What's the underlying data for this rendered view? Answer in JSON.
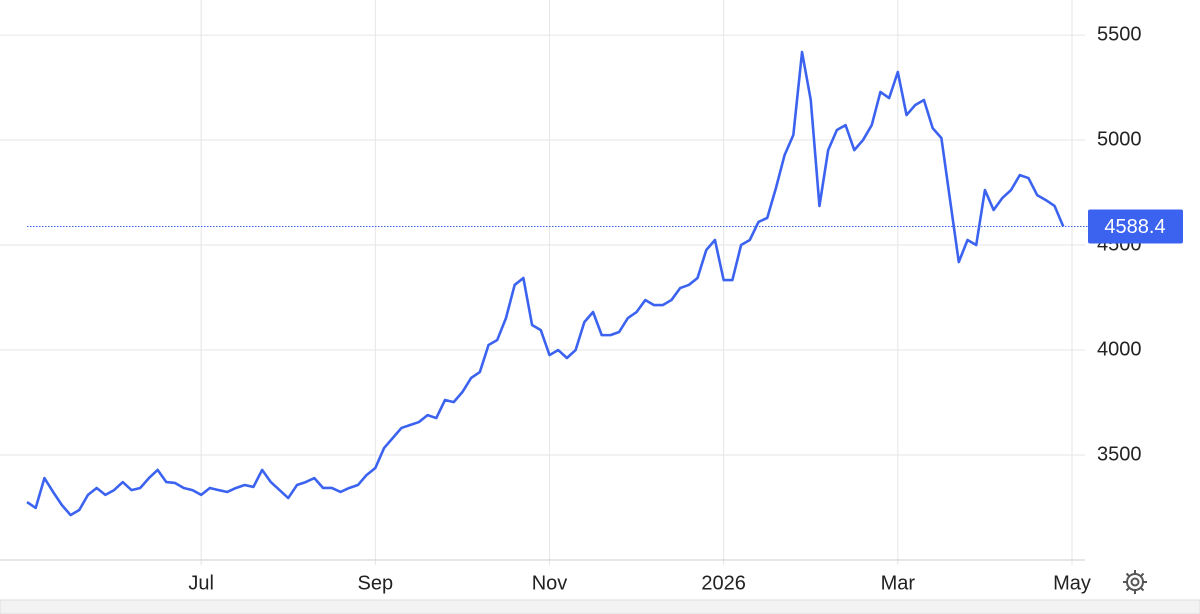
{
  "chart_data": {
    "type": "line",
    "categories": [
      null,
      null,
      null,
      null,
      null,
      null,
      null,
      null,
      null,
      null,
      null,
      null,
      null,
      null,
      null,
      null,
      null,
      null,
      null,
      null,
      "Jul",
      null,
      null,
      null,
      null,
      null,
      null,
      null,
      null,
      null,
      null,
      null,
      null,
      null,
      null,
      null,
      null,
      null,
      null,
      null,
      "Sep",
      null,
      null,
      null,
      null,
      null,
      null,
      null,
      null,
      null,
      null,
      null,
      null,
      null,
      null,
      null,
      null,
      null,
      null,
      null,
      "Nov",
      null,
      null,
      null,
      null,
      null,
      null,
      null,
      null,
      null,
      null,
      null,
      null,
      null,
      null,
      null,
      null,
      null,
      null,
      null,
      "2026",
      null,
      null,
      null,
      null,
      null,
      null,
      null,
      null,
      null,
      null,
      null,
      null,
      null,
      null,
      null,
      null,
      null,
      null,
      null,
      "Mar",
      null,
      null,
      null,
      null,
      null,
      null,
      null,
      null,
      null,
      null,
      null,
      null,
      null,
      null,
      null,
      null,
      null,
      null,
      null,
      "May"
    ],
    "series": [
      {
        "color": "#3b63f0",
        "values": [
          3276,
          3248,
          3390,
          3324,
          3262,
          3214,
          3238,
          3310,
          3343,
          3310,
          3333,
          3371,
          3333,
          3343,
          3390,
          3429,
          3371,
          3367,
          3343,
          3333,
          3310,
          3343,
          3333,
          3324,
          3343,
          3357,
          3348,
          3429,
          3371,
          3333,
          3295,
          3357,
          3371,
          3390,
          3343,
          3343,
          3324,
          3343,
          3357,
          3405,
          3438,
          3533,
          3581,
          3629,
          3643,
          3657,
          3690,
          3676,
          3762,
          3752,
          3800,
          3867,
          3895,
          4024,
          4048,
          4152,
          4310,
          4343,
          4119,
          4095,
          3976,
          4000,
          3962,
          4000,
          4133,
          4181,
          4071,
          4071,
          4086,
          4152,
          4181,
          4238,
          4214,
          4214,
          4238,
          4295,
          4310,
          4343,
          4476,
          4524,
          4333,
          4333,
          4500,
          4524,
          4610,
          4629,
          4771,
          4929,
          5024,
          5419,
          5191,
          4686,
          4952,
          5048,
          5071,
          4952,
          5000,
          5071,
          5229,
          5200,
          5324,
          5119,
          5167,
          5191,
          5057,
          5010,
          4714,
          4419,
          4524,
          4500,
          4762,
          4667,
          4724,
          4762,
          4833,
          4819,
          4738,
          4714,
          4686,
          4588.4,
          null
        ]
      }
    ],
    "ylim": [
      3000,
      5667
    ],
    "yticks": [
      3500,
      4000,
      4500,
      5000,
      5500
    ],
    "grid": true
  }
}
